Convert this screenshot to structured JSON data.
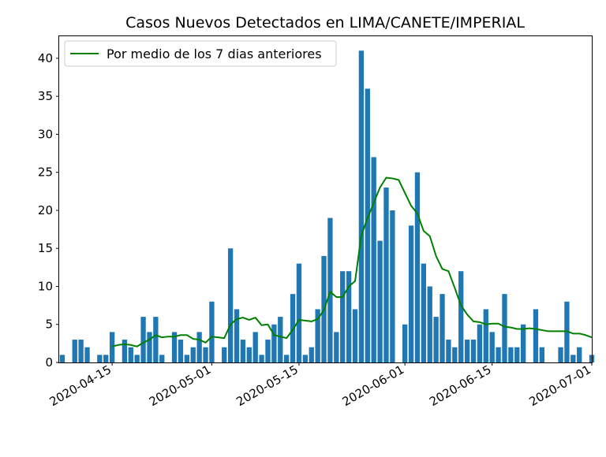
{
  "chart_data": {
    "type": "bar",
    "title": "Casos Nuevos Detectados en LIMA/CANETE/IMPERIAL",
    "xlabel": "",
    "ylabel": "",
    "x_range": [
      "2020-04-07",
      "2020-07-01"
    ],
    "ylim": [
      0,
      43
    ],
    "y_ticks": [
      0,
      5,
      10,
      15,
      20,
      25,
      30,
      35,
      40
    ],
    "x_ticks": [
      "2020-04-15",
      "2020-05-01",
      "2020-05-15",
      "2020-06-01",
      "2020-06-15",
      "2020-07-01"
    ],
    "grid": false,
    "legend_position": "top-left",
    "colors": {
      "bars": "#1f77b4",
      "line": "#008000"
    },
    "bars": {
      "dates": [
        "2020-04-07",
        "2020-04-08",
        "2020-04-09",
        "2020-04-10",
        "2020-04-11",
        "2020-04-12",
        "2020-04-13",
        "2020-04-14",
        "2020-04-15",
        "2020-04-16",
        "2020-04-17",
        "2020-04-18",
        "2020-04-19",
        "2020-04-20",
        "2020-04-21",
        "2020-04-22",
        "2020-04-23",
        "2020-04-24",
        "2020-04-25",
        "2020-04-26",
        "2020-04-27",
        "2020-04-28",
        "2020-04-29",
        "2020-04-30",
        "2020-05-01",
        "2020-05-02",
        "2020-05-03",
        "2020-05-04",
        "2020-05-05",
        "2020-05-06",
        "2020-05-07",
        "2020-05-08",
        "2020-05-09",
        "2020-05-10",
        "2020-05-11",
        "2020-05-12",
        "2020-05-13",
        "2020-05-14",
        "2020-05-15",
        "2020-05-16",
        "2020-05-17",
        "2020-05-18",
        "2020-05-19",
        "2020-05-20",
        "2020-05-21",
        "2020-05-22",
        "2020-05-23",
        "2020-05-24",
        "2020-05-25",
        "2020-05-26",
        "2020-05-27",
        "2020-05-28",
        "2020-05-29",
        "2020-05-30",
        "2020-05-31",
        "2020-06-01",
        "2020-06-02",
        "2020-06-03",
        "2020-06-04",
        "2020-06-05",
        "2020-06-06",
        "2020-06-07",
        "2020-06-08",
        "2020-06-09",
        "2020-06-10",
        "2020-06-11",
        "2020-06-12",
        "2020-06-13",
        "2020-06-14",
        "2020-06-15",
        "2020-06-16",
        "2020-06-17",
        "2020-06-18",
        "2020-06-19",
        "2020-06-20",
        "2020-06-21",
        "2020-06-22",
        "2020-06-23",
        "2020-06-24",
        "2020-06-25",
        "2020-06-26",
        "2020-06-27",
        "2020-06-28",
        "2020-06-29",
        "2020-06-30",
        "2020-07-01"
      ],
      "values": [
        1,
        0,
        3,
        3,
        2,
        0,
        1,
        1,
        4,
        0,
        3,
        2,
        1,
        6,
        4,
        6,
        1,
        0,
        4,
        3,
        1,
        2,
        4,
        2,
        8,
        0,
        2,
        15,
        7,
        3,
        2,
        4,
        1,
        3,
        5,
        6,
        1,
        9,
        13,
        1,
        2,
        7,
        14,
        19,
        4,
        12,
        12,
        7,
        41,
        36,
        27,
        16,
        23,
        20,
        0,
        5,
        18,
        25,
        13,
        10,
        6,
        9,
        3,
        2,
        12,
        3,
        3,
        5,
        7,
        4,
        2,
        9,
        2,
        2,
        5,
        0,
        7,
        2,
        0,
        0,
        2,
        8,
        1,
        2,
        0,
        1
      ]
    },
    "series": [
      {
        "name": "Por medio de los 7 dias anteriores",
        "type": "line",
        "dates": [
          "2020-04-15",
          "2020-04-16",
          "2020-04-17",
          "2020-04-18",
          "2020-04-19",
          "2020-04-20",
          "2020-04-21",
          "2020-04-22",
          "2020-04-23",
          "2020-04-24",
          "2020-04-25",
          "2020-04-26",
          "2020-04-27",
          "2020-04-28",
          "2020-04-29",
          "2020-04-30",
          "2020-05-01",
          "2020-05-03",
          "2020-05-04",
          "2020-05-05",
          "2020-05-06",
          "2020-05-07",
          "2020-05-08",
          "2020-05-09",
          "2020-05-10",
          "2020-05-11",
          "2020-05-12",
          "2020-05-13",
          "2020-05-14",
          "2020-05-15",
          "2020-05-16",
          "2020-05-17",
          "2020-05-18",
          "2020-05-19",
          "2020-05-20",
          "2020-05-21",
          "2020-05-22",
          "2020-05-23",
          "2020-05-24",
          "2020-05-25",
          "2020-05-26",
          "2020-05-27",
          "2020-05-28",
          "2020-05-29",
          "2020-05-30",
          "2020-05-31",
          "2020-06-02",
          "2020-06-03",
          "2020-06-04",
          "2020-06-05",
          "2020-06-06",
          "2020-06-07",
          "2020-06-08",
          "2020-06-09",
          "2020-06-10",
          "2020-06-11",
          "2020-06-12",
          "2020-06-13",
          "2020-06-14",
          "2020-06-15",
          "2020-06-16",
          "2020-06-17",
          "2020-06-18",
          "2020-06-19",
          "2020-06-20",
          "2020-06-21",
          "2020-06-22",
          "2020-06-24",
          "2020-06-27",
          "2020-06-28",
          "2020-06-29",
          "2020-06-30",
          "2020-07-01"
        ],
        "values": [
          2.1,
          2.3,
          2.4,
          2.3,
          2.1,
          2.6,
          3.0,
          3.6,
          3.3,
          3.4,
          3.4,
          3.6,
          3.6,
          3.1,
          3.0,
          2.6,
          3.4,
          3.2,
          5.0,
          5.7,
          5.9,
          5.6,
          5.9,
          4.9,
          5.0,
          3.6,
          3.4,
          3.2,
          4.3,
          5.6,
          5.5,
          5.4,
          5.7,
          6.9,
          9.3,
          8.6,
          8.6,
          10.0,
          10.7,
          16.7,
          19.0,
          21.0,
          23.0,
          24.3,
          24.2,
          24.0,
          20.6,
          19.6,
          17.3,
          16.6,
          14.0,
          12.3,
          12.0,
          9.8,
          7.5,
          6.3,
          5.4,
          5.3,
          5.0,
          5.1,
          5.1,
          4.7,
          4.6,
          4.4,
          4.4,
          4.5,
          4.4,
          4.1,
          4.1,
          3.8,
          3.8,
          3.6,
          3.3
        ]
      }
    ]
  }
}
